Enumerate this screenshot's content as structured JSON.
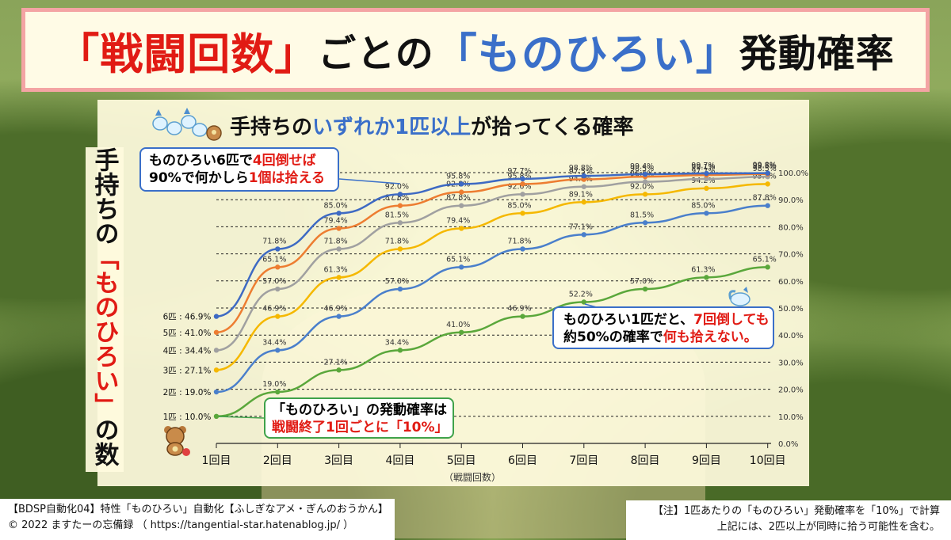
{
  "title": {
    "part1": "「戦闘回数」",
    "part2": "ごとの",
    "part3": "「ものひろい」",
    "part4": "発動確率"
  },
  "subtitle": {
    "pre": "手持ちの",
    "blue": "いずれか1匹以上",
    "post": "が拾ってくる確率"
  },
  "ylabel": {
    "pre": "手持ちの",
    "red": "「ものひろい」",
    "post": "の数"
  },
  "callouts": {
    "top": {
      "l1a": "ものひろい6匹で",
      "l1b": "4回倒せば",
      "l2a": "90%で何かしら",
      "l2b": "1個は拾える"
    },
    "right": {
      "l1a": "ものひろい1匹だと、",
      "l1b": "7回倒しても",
      "l2a": "約50%の確率で",
      "l2b": "何も拾えない。"
    },
    "bottom": {
      "l1": "「ものひろい」の発動確率は",
      "l2": "戦闘終了1回ごとに「10%」"
    }
  },
  "footer": {
    "left1": "【BDSP自動化04】特性「ものひろい」自動化【ふしぎなアメ・ぎんのおうかん】",
    "left2": "© 2022 ますたーの忘備録 （ https://tangential-star.hatenablog.jp/ ）",
    "right1": "【注】1匹あたりの「ものひろい」発動確率を「10%」で計算",
    "right2": "上記には、2匹以上が同時に拾う可能性を含む。"
  },
  "colors": {
    "s1": "#5aa73b",
    "s2": "#4a7fcb",
    "s3": "#f5b800",
    "s4": "#a0a0a0",
    "s5": "#ed7d31",
    "s6": "#3e6ac3",
    "red": "#e11b14",
    "blue": "#3a6fc9"
  },
  "icons": [
    "pachirisu-group-icon",
    "teddiursa-icon",
    "pachirisu-icon"
  ],
  "chart_data": {
    "type": "line",
    "xlabel": "（戦闘回数）",
    "categories": [
      "1回目",
      "2回目",
      "3回目",
      "4回目",
      "5回目",
      "6回目",
      "7回目",
      "8回目",
      "9回目",
      "10回目"
    ],
    "ylim": [
      0,
      100
    ],
    "yticks": [
      "0.0%",
      "10.0%",
      "20.0%",
      "30.0%",
      "40.0%",
      "50.0%",
      "60.0%",
      "70.0%",
      "80.0%",
      "90.0%",
      "100.0%"
    ],
    "grid": "horizontal-dashed",
    "series": [
      {
        "name": "1匹",
        "start_label": "1匹 : 10.0%",
        "values": [
          10.0,
          19.0,
          27.1,
          34.4,
          41.0,
          46.9,
          52.2,
          57.0,
          61.3,
          65.1
        ]
      },
      {
        "name": "2匹",
        "start_label": "2匹 : 19.0%",
        "values": [
          19.0,
          34.4,
          46.9,
          57.0,
          65.1,
          71.8,
          77.1,
          81.5,
          85.0,
          87.8
        ]
      },
      {
        "name": "3匹",
        "start_label": "3匹 : 27.1%",
        "values": [
          27.1,
          46.9,
          61.3,
          71.8,
          79.4,
          85.0,
          89.1,
          92.0,
          94.2,
          95.8
        ]
      },
      {
        "name": "4匹",
        "start_label": "4匹 : 34.4%",
        "values": [
          34.4,
          57.0,
          71.8,
          81.5,
          87.8,
          92.0,
          94.8,
          96.6,
          97.7,
          98.5
        ]
      },
      {
        "name": "5匹",
        "start_label": "5匹 : 41.0%",
        "values": [
          41.0,
          65.1,
          79.4,
          87.8,
          92.8,
          95.8,
          97.5,
          98.5,
          99.1,
          99.5
        ]
      },
      {
        "name": "6匹",
        "start_label": "6匹 : 46.9%",
        "values": [
          46.9,
          71.8,
          85.0,
          92.0,
          95.8,
          97.7,
          98.8,
          99.4,
          99.7,
          99.8
        ]
      }
    ]
  }
}
